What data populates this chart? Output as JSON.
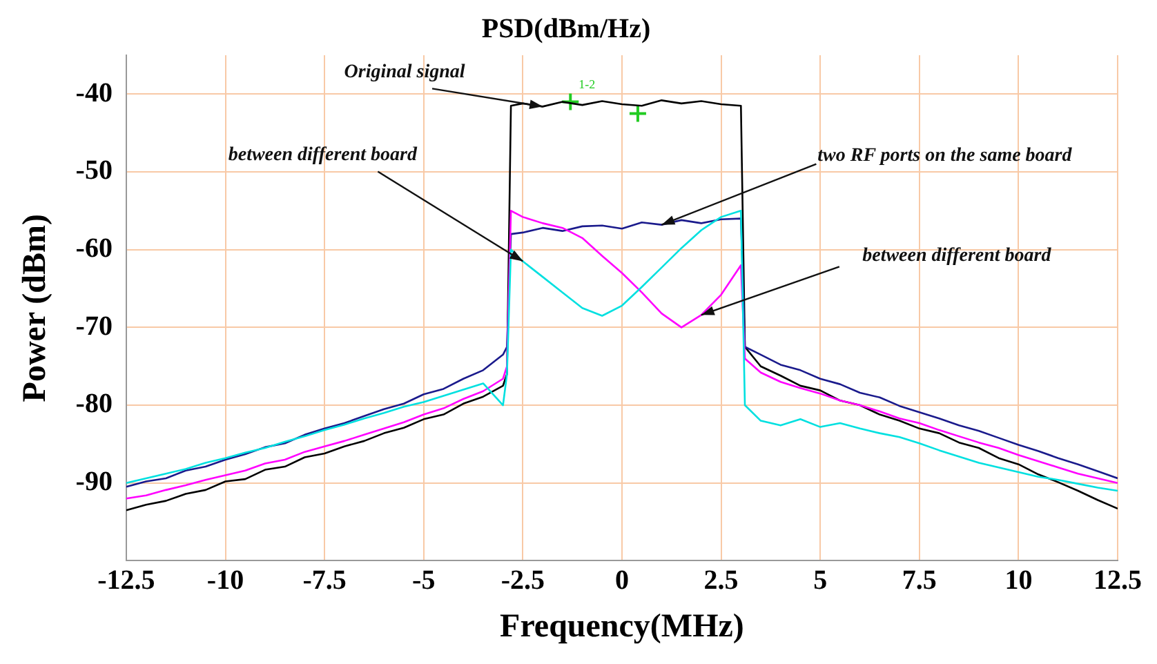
{
  "chart_data": {
    "type": "line",
    "title": "PSD(dBm/Hz)",
    "xlabel": "Frequency(MHz)",
    "ylabel": "Power (dBm)",
    "x": [
      -12.5,
      -12,
      -11.5,
      -11,
      -10.5,
      -10,
      -9.5,
      -9,
      -8.5,
      -8,
      -7.5,
      -7,
      -6.5,
      -6,
      -5.5,
      -5,
      -4.5,
      -4,
      -3.5,
      -3,
      -2.9,
      -2.8,
      -2.5,
      -2,
      -1.5,
      -1,
      -0.5,
      0,
      0.5,
      1,
      1.5,
      2,
      2.5,
      3,
      3.1,
      3.5,
      4,
      4.5,
      5,
      5.5,
      6,
      6.5,
      7,
      7.5,
      8,
      8.5,
      9,
      9.5,
      10,
      10.5,
      11,
      11.5,
      12,
      12.5
    ],
    "series": [
      {
        "color": "#00e0e0",
        "values": [
          -90,
          -89.4,
          -88.8,
          -88.2,
          -87.4,
          -86.8,
          -86.1,
          -85.5,
          -84.7,
          -84,
          -83.2,
          -82.5,
          -81.7,
          -81,
          -80.2,
          -79.6,
          -78.8,
          -78,
          -77.2,
          -80,
          -76,
          -60,
          -61.5,
          -63.5,
          -65.5,
          -67.5,
          -68.5,
          -67.2,
          -64.8,
          -62.3,
          -59.8,
          -57.5,
          -55.8,
          -55,
          -80,
          -82,
          -82.6,
          -81.8,
          -82.8,
          -82.3,
          -83,
          -83.6,
          -84.1,
          -84.9,
          -85.8,
          -86.6,
          -87.4,
          -88,
          -88.6,
          -89.2,
          -89.6,
          -90.1,
          -90.6,
          -91
        ]
      },
      {
        "color": "#ff00ff",
        "values": [
          -92,
          -91.6,
          -90.9,
          -90.3,
          -89.6,
          -89,
          -88.4,
          -87.5,
          -87,
          -86,
          -85.3,
          -84.6,
          -83.8,
          -83,
          -82.2,
          -81.2,
          -80.4,
          -79.2,
          -78.2,
          -76.6,
          -75,
          -55,
          -55.8,
          -56.6,
          -57.2,
          -58.5,
          -60.8,
          -63,
          -65.5,
          -68.2,
          -70,
          -68.4,
          -65.8,
          -62,
          -74,
          -75.8,
          -77,
          -77.8,
          -78.5,
          -79.4,
          -80,
          -80.8,
          -81.7,
          -82.3,
          -83.2,
          -84,
          -84.8,
          -85.5,
          -86.4,
          -87.2,
          -88,
          -88.8,
          -89.4,
          -90
        ]
      },
      {
        "color": "#1a1a8c",
        "values": [
          -90.5,
          -89.8,
          -89.4,
          -88.4,
          -87.9,
          -87,
          -86.3,
          -85.4,
          -84.9,
          -83.8,
          -83,
          -82.3,
          -81.4,
          -80.5,
          -79.8,
          -78.6,
          -77.9,
          -76.6,
          -75.5,
          -73.5,
          -72.5,
          -58,
          -57.8,
          -57.2,
          -57.6,
          -57,
          -56.9,
          -57.3,
          -56.5,
          -56.8,
          -56.2,
          -56.6,
          -56.1,
          -56,
          -72.5,
          -73.5,
          -74.8,
          -75.5,
          -76.6,
          -77.3,
          -78.4,
          -79,
          -80.1,
          -80.9,
          -81.7,
          -82.6,
          -83.3,
          -84.2,
          -85.1,
          -85.9,
          -86.8,
          -87.6,
          -88.5,
          -89.4
        ]
      },
      {
        "color": "#000000",
        "values": [
          -93.5,
          -92.8,
          -92.3,
          -91.4,
          -90.9,
          -89.8,
          -89.5,
          -88.3,
          -87.9,
          -86.7,
          -86.2,
          -85.3,
          -84.6,
          -83.6,
          -82.9,
          -81.8,
          -81.2,
          -79.8,
          -78.9,
          -77.5,
          -76,
          -41.5,
          -41.2,
          -41.6,
          -41,
          -41.4,
          -40.9,
          -41.3,
          -41.5,
          -40.8,
          -41.2,
          -40.9,
          -41.3,
          -41.5,
          -72.5,
          -75,
          -76.2,
          -77.5,
          -78.1,
          -79.4,
          -80,
          -81.2,
          -82,
          -83,
          -83.6,
          -84.8,
          -85.5,
          -86.8,
          -87.6,
          -88.9,
          -89.9,
          -91,
          -92.2,
          -93.3
        ]
      },
      {
        "type": "scatter",
        "marker": "cross",
        "color": "#22cc22",
        "x": [
          -1.3,
          0.4
        ],
        "values": [
          -41,
          -42.5
        ]
      }
    ],
    "xlim": [
      -12.5,
      12.5
    ],
    "xticks": [
      -12.5,
      -10,
      -7.5,
      -5,
      -2.5,
      0,
      2.5,
      5,
      7.5,
      10,
      12.5
    ],
    "ylim": [
      -100,
      -35
    ],
    "yticks": [
      -90,
      -80,
      -70,
      -60,
      -50,
      -40
    ],
    "grid": true,
    "legend": false,
    "marker": "none",
    "annotations": [
      {
        "text": "Original signal",
        "x": -2,
        "y": -41.6
      },
      {
        "text": "two RF ports on the same board",
        "x": 1,
        "y": -56.8
      },
      {
        "text": "between different board",
        "x": -2.5,
        "y": -61.5
      },
      {
        "text": "between different board",
        "x": 2,
        "y": -68.4
      },
      {
        "text": "1-2",
        "x": -1.3,
        "y": -41
      }
    ]
  }
}
